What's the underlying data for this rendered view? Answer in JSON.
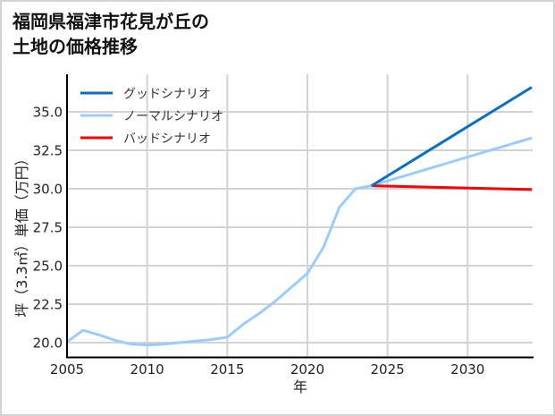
{
  "title": {
    "line1": "福岡県福津市花見が丘の",
    "line2": "土地の価格推移"
  },
  "chart_data": {
    "type": "line",
    "title": "福岡県福津市花見が丘の土地の価格推移",
    "xlabel": "年",
    "ylabel": "坪（3.3㎡）単価（万円）",
    "xlim": [
      2005,
      2034
    ],
    "ylim": [
      19.1,
      37.3
    ],
    "x_ticks": [
      2005,
      2010,
      2015,
      2020,
      2025,
      2030
    ],
    "x_tick_labels": [
      "2005",
      "2010",
      "2015",
      "2020",
      "2025",
      "2030"
    ],
    "y_ticks": [
      20.0,
      22.5,
      25.0,
      27.5,
      30.0,
      32.5,
      35.0
    ],
    "y_tick_labels": [
      "20.0",
      "22.5",
      "25.0",
      "27.5",
      "30.0",
      "32.5",
      "35.0"
    ],
    "grid": true,
    "legend_position": "upper left",
    "series": [
      {
        "name": "グッドシナリオ",
        "color": "#0a6fc2",
        "x": [
          2024,
          2034
        ],
        "values": [
          30.2,
          36.6
        ]
      },
      {
        "name": "ノーマルシナリオ",
        "color": "#99ccff",
        "x": [
          2005,
          2006,
          2007,
          2008,
          2009,
          2010,
          2011,
          2012,
          2013,
          2014,
          2015,
          2016,
          2017,
          2018,
          2019,
          2020,
          2021,
          2022,
          2023,
          2024,
          2034
        ],
        "values": [
          20.05,
          20.8,
          20.5,
          20.15,
          19.9,
          19.85,
          19.9,
          20.0,
          20.1,
          20.2,
          20.35,
          21.2,
          21.9,
          22.7,
          23.6,
          24.5,
          26.2,
          28.8,
          30.0,
          30.2,
          33.3
        ]
      },
      {
        "name": "バッドシナリオ",
        "color": "#ff0000",
        "x": [
          2024,
          2034
        ],
        "values": [
          30.2,
          29.95
        ]
      }
    ]
  },
  "legend": {
    "items": [
      {
        "label": "グッドシナリオ",
        "color": "#0a6fc2"
      },
      {
        "label": "ノーマルシナリオ",
        "color": "#99ccff"
      },
      {
        "label": "バッドシナリオ",
        "color": "#ff0000"
      }
    ]
  },
  "axes": {
    "xlabel": "年",
    "ylabel": "坪（3.3㎡）単価（万円）"
  }
}
